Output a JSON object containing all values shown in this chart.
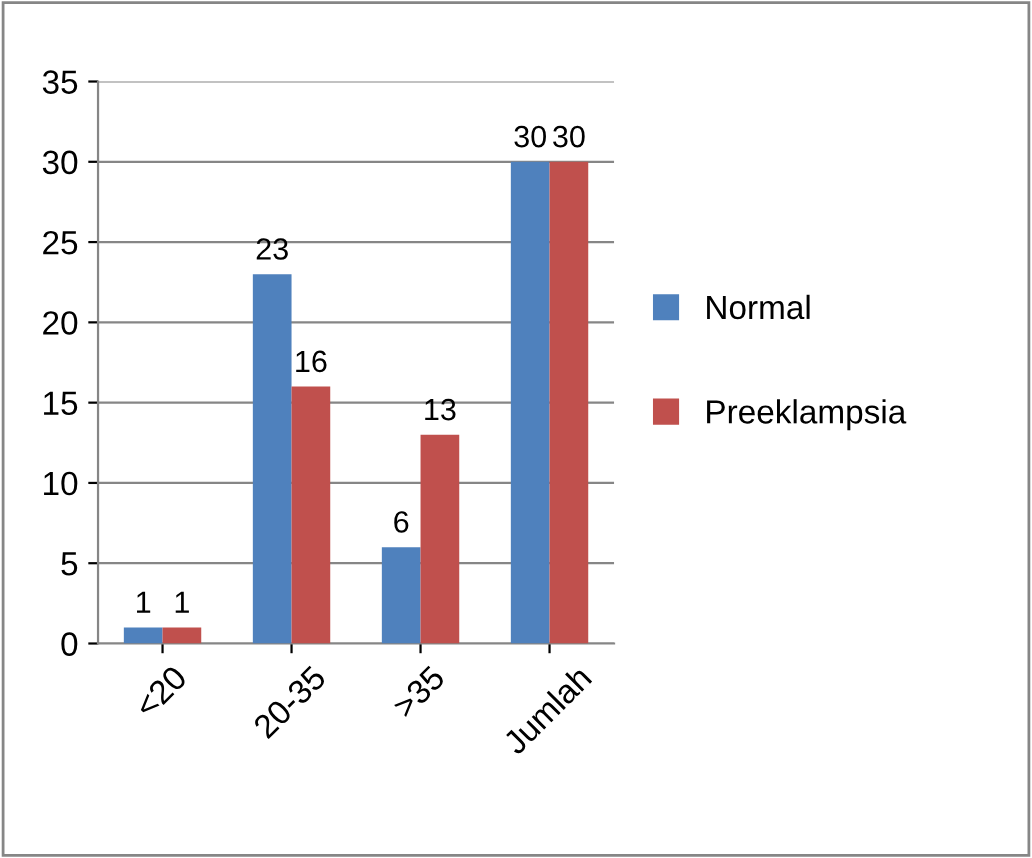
{
  "chart_data": {
    "type": "bar",
    "categories": [
      "<20",
      "20-35",
      ">35",
      "Jumlah"
    ],
    "series": [
      {
        "name": "Normal",
        "color": "#4f81bd",
        "values": [
          1,
          23,
          6,
          30
        ]
      },
      {
        "name": "Preeklampsia",
        "color": "#c0504d",
        "values": [
          1,
          16,
          13,
          30
        ]
      }
    ],
    "ylim": [
      0,
      35
    ],
    "yticks": [
      0,
      5,
      10,
      15,
      20,
      25,
      30,
      35
    ],
    "grid": "y",
    "legend": "right",
    "data_labels": true
  }
}
